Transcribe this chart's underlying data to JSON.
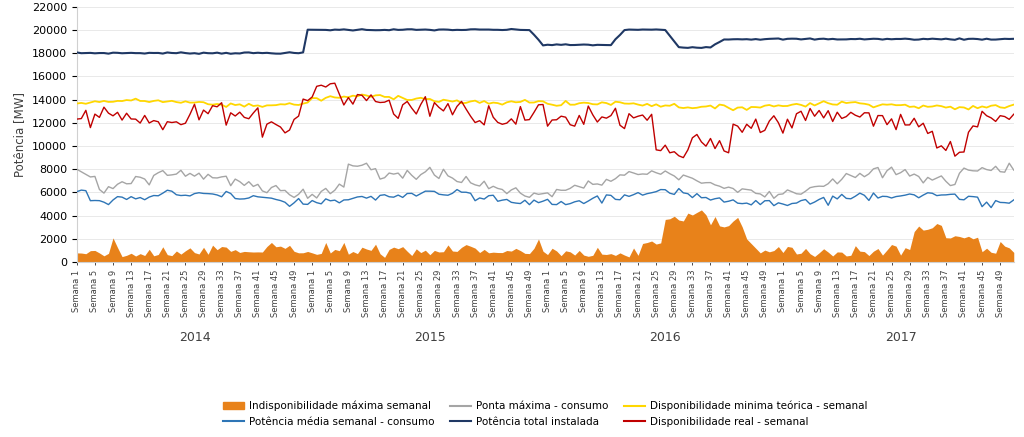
{
  "ylabel": "Potência [MW]",
  "ylim": [
    0,
    22000
  ],
  "yticks": [
    0,
    2000,
    4000,
    6000,
    8000,
    10000,
    12000,
    14000,
    16000,
    18000,
    20000,
    22000
  ],
  "colors": {
    "indisponibilidade": "#E8821A",
    "potencia_media": "#2E75B6",
    "ponta_maxima": "#A5A5A5",
    "potencia_total": "#1F3864",
    "disponibilidade_minima": "#FFD700",
    "disponibilidade_real": "#C00000"
  },
  "legend_labels": [
    "Indisponibilidade máxima semanal",
    "Potência média semanal - consumo",
    "Ponta máxima - consumo",
    "Potência total instalada",
    "Disponibilidade minima teórica - semanal",
    "Disponibilidade real - semanal"
  ],
  "year_labels": [
    "2014",
    "2015",
    "2016",
    "2017"
  ],
  "background_color": "#FFFFFF",
  "grid_color": "#E0E0E0",
  "n_weeks_per_year": 52,
  "n_years": 4
}
